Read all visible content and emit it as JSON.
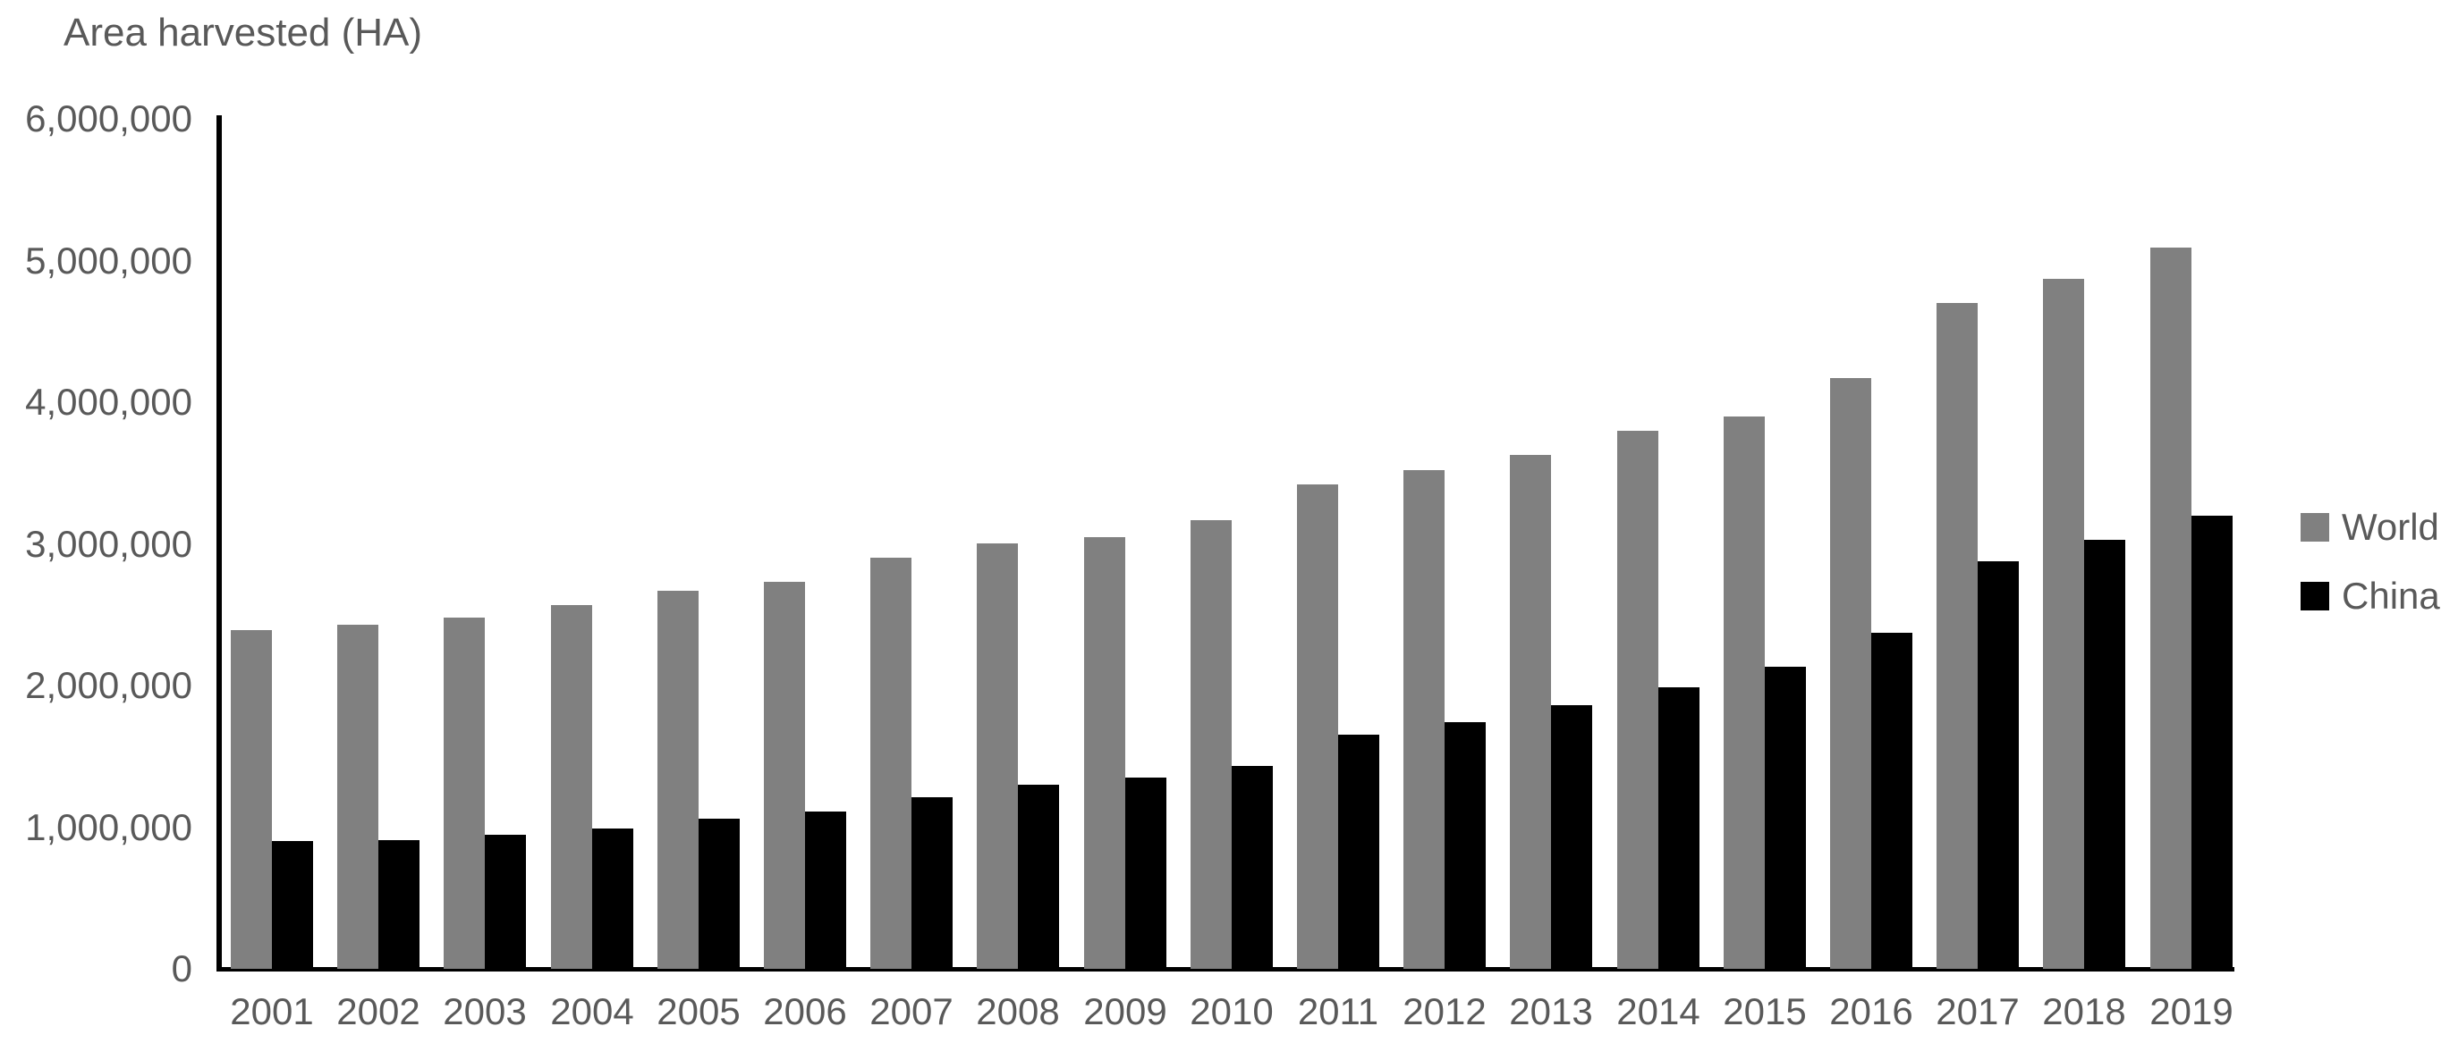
{
  "chart": {
    "title": "Area harvested (HA)"
  },
  "chart_data": {
    "type": "bar",
    "title": "Area harvested (HA)",
    "xlabel": "",
    "ylabel": "Area harvested (HA)",
    "categories": [
      "2001",
      "2002",
      "2003",
      "2004",
      "2005",
      "2006",
      "2007",
      "2008",
      "2009",
      "2010",
      "2011",
      "2012",
      "2013",
      "2014",
      "2015",
      "2016",
      "2017",
      "2018",
      "2019"
    ],
    "series": [
      {
        "name": "World",
        "color": "#808080",
        "values": [
          2390000,
          2430000,
          2480000,
          2570000,
          2670000,
          2730000,
          2900000,
          3000000,
          3050000,
          3170000,
          3420000,
          3520000,
          3630000,
          3800000,
          3900000,
          4170000,
          4700000,
          4870000,
          5090000
        ]
      },
      {
        "name": "China",
        "color": "#000000",
        "values": [
          900000,
          910000,
          945000,
          990000,
          1060000,
          1110000,
          1210000,
          1300000,
          1350000,
          1430000,
          1650000,
          1740000,
          1860000,
          1990000,
          2130000,
          2370000,
          2880000,
          3030000,
          3200000
        ]
      }
    ],
    "ylim": [
      0,
      6000000
    ],
    "y_tick_interval": 1000000,
    "y_tick_labels": [
      "0",
      "1,000,000",
      "2,000,000",
      "3,000,000",
      "4,000,000",
      "5,000,000",
      "6,000,000"
    ],
    "grid": false,
    "legend_position": "right"
  },
  "colors": {
    "text": "#595959",
    "axis": "#000000",
    "world_bar": "#808080",
    "china_bar": "#000000"
  }
}
